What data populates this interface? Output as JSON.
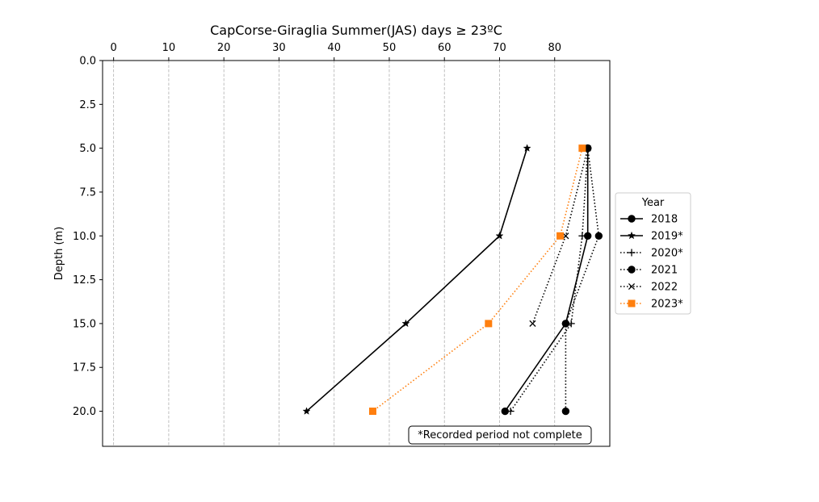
{
  "chart_data": {
    "type": "line",
    "title": "CapCorse-Giraglia Summer(JAS) days ≥ 23ºC",
    "xlabel": "",
    "ylabel": "Depth (m)",
    "x_axis_position": "top",
    "xlim": [
      -2,
      90
    ],
    "ylim": [
      22,
      0
    ],
    "y_inverted": true,
    "xticks": [
      0,
      10,
      20,
      30,
      40,
      50,
      60,
      70,
      80
    ],
    "yticks": [
      0.0,
      2.5,
      5.0,
      7.5,
      10.0,
      12.5,
      15.0,
      17.5,
      20.0
    ],
    "ytick_labels": [
      "0.0",
      "2.5",
      "5.0",
      "7.5",
      "10.0",
      "12.5",
      "15.0",
      "17.5",
      "20.0"
    ],
    "grid": "vertical dashed",
    "legend": {
      "title": "Year",
      "placement": "right"
    },
    "annotation": "*Recorded period not complete",
    "series": [
      {
        "name": "2018",
        "depth": [
          5,
          10,
          15,
          20
        ],
        "days": [
          86,
          86,
          82,
          71
        ],
        "color": "#000000",
        "linestyle": "solid",
        "marker": "circle"
      },
      {
        "name": "2019*",
        "depth": [
          5,
          10,
          15,
          20
        ],
        "days": [
          75,
          70,
          53,
          35
        ],
        "color": "#000000",
        "linestyle": "solid",
        "marker": "star"
      },
      {
        "name": "2020*",
        "depth": [
          5,
          10,
          15,
          20
        ],
        "days": [
          86,
          85,
          83,
          72
        ],
        "color": "#000000",
        "linestyle": "dotted",
        "marker": "plus"
      },
      {
        "name": "2021",
        "depth": [
          5,
          10,
          15,
          20
        ],
        "days": [
          86,
          88,
          82,
          82
        ],
        "color": "#000000",
        "linestyle": "dotted",
        "marker": "circle"
      },
      {
        "name": "2022",
        "depth": [
          5,
          10,
          15
        ],
        "days": [
          86,
          82,
          76
        ],
        "color": "#000000",
        "linestyle": "dotted",
        "marker": "x"
      },
      {
        "name": "2023*",
        "depth": [
          5,
          10,
          15,
          20
        ],
        "days": [
          85,
          81,
          68,
          47
        ],
        "color": "#ff7f0e",
        "linestyle": "dotted",
        "marker": "square"
      }
    ]
  }
}
